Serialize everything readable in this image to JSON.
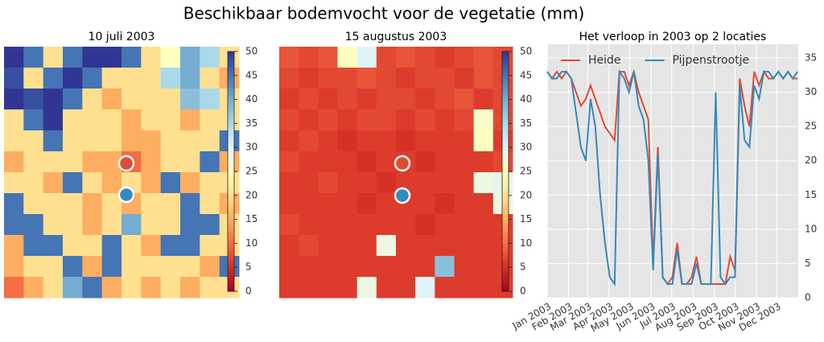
{
  "title": "Beschikbaar bodemvocht voor de vegetatie (mm)",
  "chart_data": [
    {
      "type": "heatmap",
      "title": "10 juli 2003",
      "clim": [
        0,
        50
      ],
      "cticks": [
        0,
        5,
        10,
        15,
        20,
        25,
        30,
        35,
        40,
        45,
        50
      ],
      "colormap": [
        "#a50026",
        "#d73027",
        "#f46d43",
        "#fdae61",
        "#fee090",
        "#ffffbf",
        "#e0f3f8",
        "#abd9e9",
        "#74add1",
        "#4575b4",
        "#313695"
      ],
      "z": [
        [
          50,
          45,
          20,
          45,
          50,
          50,
          45,
          20,
          25,
          40,
          35,
          20
        ],
        [
          48,
          20,
          45,
          50,
          45,
          20,
          20,
          20,
          35,
          40,
          20,
          15
        ],
        [
          50,
          48,
          50,
          45,
          20,
          15,
          20,
          20,
          20,
          38,
          35,
          20
        ],
        [
          20,
          45,
          50,
          20,
          20,
          20,
          15,
          20,
          20,
          15,
          20,
          20
        ],
        [
          20,
          20,
          45,
          20,
          20,
          20,
          15,
          15,
          20,
          20,
          20,
          45
        ],
        [
          15,
          20,
          20,
          20,
          15,
          15,
          10,
          15,
          20,
          20,
          45,
          15
        ],
        [
          20,
          20,
          15,
          45,
          20,
          15,
          20,
          15,
          45,
          15,
          20,
          20
        ],
        [
          45,
          20,
          20,
          20,
          15,
          20,
          15,
          20,
          20,
          45,
          20,
          15
        ],
        [
          45,
          45,
          20,
          20,
          15,
          20,
          40,
          20,
          20,
          45,
          45,
          20
        ],
        [
          15,
          45,
          45,
          20,
          20,
          45,
          20,
          15,
          45,
          45,
          20,
          20
        ],
        [
          15,
          20,
          20,
          45,
          15,
          45,
          20,
          20,
          20,
          20,
          15,
          45
        ],
        [
          10,
          15,
          20,
          40,
          45,
          15,
          20,
          15,
          20,
          15,
          20,
          20
        ]
      ]
    },
    {
      "type": "heatmap",
      "title": "15 augustus 2003",
      "clim": [
        0,
        50
      ],
      "cticks": [
        0,
        5,
        10,
        15,
        20,
        25,
        30,
        35,
        40,
        45,
        50
      ],
      "colormap": [
        "#a50026",
        "#d73027",
        "#f46d43",
        "#fdae61",
        "#fee090",
        "#ffffbf",
        "#e0f3f8",
        "#abd9e9",
        "#74add1",
        "#4575b4",
        "#313695"
      ],
      "z": [
        [
          8,
          7,
          8,
          25,
          30,
          7,
          8,
          7,
          6,
          7,
          8,
          7
        ],
        [
          7,
          6,
          7,
          7,
          8,
          7,
          6,
          7,
          7,
          6,
          8,
          7
        ],
        [
          6,
          7,
          6,
          7,
          6,
          7,
          7,
          6,
          7,
          8,
          6,
          7
        ],
        [
          7,
          6,
          7,
          6,
          7,
          7,
          6,
          7,
          6,
          7,
          26,
          7
        ],
        [
          6,
          7,
          6,
          5,
          6,
          6,
          5,
          6,
          6,
          6,
          25,
          6
        ],
        [
          7,
          6,
          6,
          6,
          5,
          6,
          6,
          5,
          6,
          6,
          6,
          7
        ],
        [
          6,
          6,
          7,
          6,
          6,
          5,
          6,
          6,
          6,
          6,
          28,
          29
        ],
        [
          6,
          6,
          6,
          6,
          5,
          6,
          6,
          6,
          5,
          6,
          6,
          28
        ],
        [
          7,
          6,
          6,
          6,
          6,
          6,
          6,
          5,
          6,
          6,
          6,
          6
        ],
        [
          6,
          7,
          6,
          6,
          6,
          28,
          6,
          6,
          6,
          6,
          6,
          6
        ],
        [
          6,
          6,
          6,
          6,
          6,
          6,
          6,
          6,
          38,
          6,
          6,
          6
        ],
        [
          6,
          6,
          6,
          6,
          28,
          6,
          6,
          30,
          6,
          6,
          6,
          6
        ]
      ]
    },
    {
      "type": "line",
      "title": "Het verloop in 2003 op 2 locaties",
      "grid": true,
      "legend": "upper left",
      "x": [
        0,
        7,
        14,
        21,
        28,
        35,
        42,
        49,
        56,
        63,
        70,
        77,
        84,
        91,
        98,
        105,
        112,
        119,
        126,
        133,
        140,
        147,
        154,
        161,
        168,
        175,
        182,
        189,
        196,
        203,
        210,
        217,
        224,
        231,
        238,
        245,
        252,
        259,
        266,
        273,
        280,
        287,
        294,
        301,
        308,
        315,
        322,
        329,
        336,
        343,
        350,
        357,
        364
      ],
      "series": [
        {
          "name": "Heide",
          "color": "#e24a33",
          "values": [
            33,
            32,
            33,
            32,
            33,
            32,
            30,
            28,
            29,
            31,
            29,
            27,
            25,
            24,
            23,
            33,
            33,
            31,
            33,
            30,
            28,
            26,
            5,
            22,
            3,
            2,
            3,
            8,
            2,
            2,
            3,
            6,
            2,
            2,
            2,
            2,
            2,
            2,
            6,
            4,
            32,
            28,
            25,
            33,
            31,
            33,
            32,
            32,
            33,
            32,
            33,
            32,
            32
          ]
        },
        {
          "name": "Pijpenstrootje",
          "color": "#348abd",
          "values": [
            33,
            32,
            32,
            33,
            33,
            32,
            27,
            22,
            20,
            29,
            25,
            15,
            8,
            3,
            2,
            33,
            32,
            30,
            33,
            28,
            26,
            20,
            4,
            21,
            3,
            2,
            2,
            7,
            2,
            2,
            2,
            5,
            2,
            2,
            2,
            30,
            3,
            2,
            3,
            3,
            31,
            23,
            22,
            31,
            29,
            33,
            33,
            32,
            33,
            32,
            33,
            32,
            33
          ]
        }
      ],
      "xlim": [
        0,
        365
      ],
      "xticks": [
        {
          "value": 0,
          "label": "Jan 2003"
        },
        {
          "value": 31,
          "label": "Feb 2003"
        },
        {
          "value": 59,
          "label": "Mar 2003"
        },
        {
          "value": 90,
          "label": "Apr 2003"
        },
        {
          "value": 120,
          "label": "May 2003"
        },
        {
          "value": 151,
          "label": "Jun 2003"
        },
        {
          "value": 181,
          "label": "Jul 2003"
        },
        {
          "value": 212,
          "label": "Aug 2003"
        },
        {
          "value": 243,
          "label": "Sep 2003"
        },
        {
          "value": 273,
          "label": "Oct 2003"
        },
        {
          "value": 304,
          "label": "Nov 2003"
        },
        {
          "value": 334,
          "label": "Dec 2003"
        }
      ],
      "ylim": [
        0,
        37
      ],
      "yticks": [
        0,
        5,
        10,
        15,
        20,
        25,
        30,
        35
      ]
    }
  ]
}
